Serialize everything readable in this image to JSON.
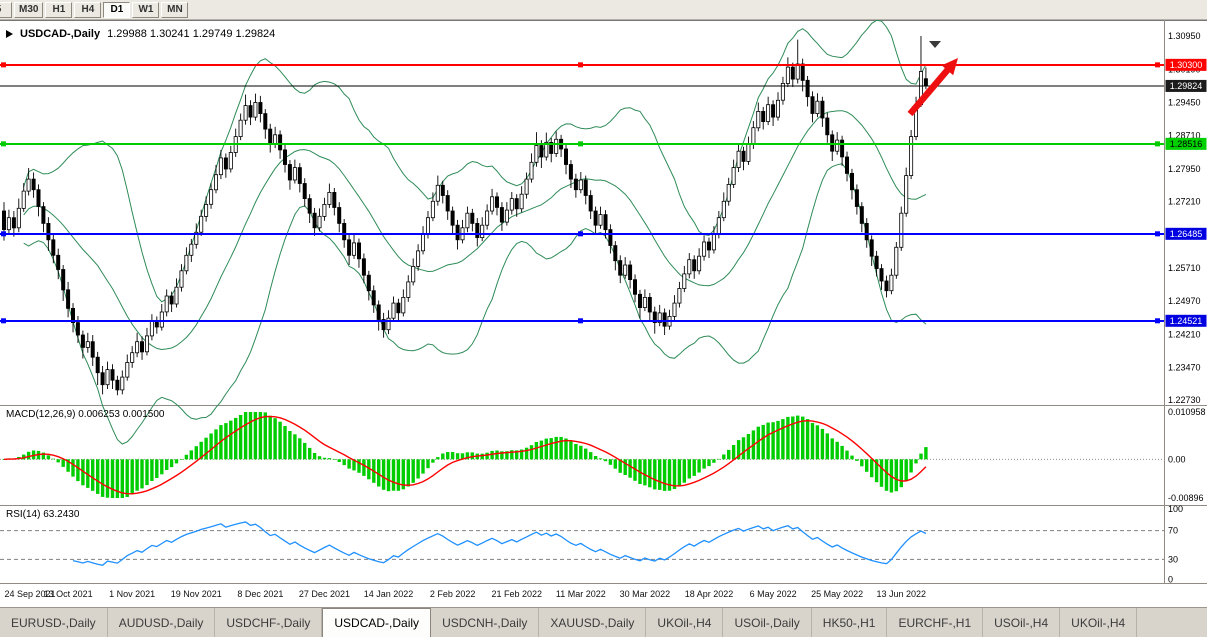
{
  "toolbar": {
    "buttons": [
      {
        "label": "5",
        "active": false
      },
      {
        "label": "M30",
        "active": false
      },
      {
        "label": "H1",
        "active": false
      },
      {
        "label": "H4",
        "active": false
      },
      {
        "label": "D1",
        "active": true
      },
      {
        "label": "W1",
        "active": false
      },
      {
        "label": "MN",
        "active": false
      }
    ]
  },
  "chart": {
    "title": "USDCAD-,Daily",
    "ohlc": "1.29988 1.30241 1.29749 1.29824"
  },
  "price_axis": {
    "labels": [
      {
        "text": "1.30950",
        "price": 1.3095
      },
      {
        "text": "1.30190",
        "price": 1.3019
      },
      {
        "text": "1.29450",
        "price": 1.2945
      },
      {
        "text": "1.28710",
        "price": 1.2871
      },
      {
        "text": "1.27950",
        "price": 1.2795
      },
      {
        "text": "1.27210",
        "price": 1.2721
      },
      {
        "text": "1.25710",
        "price": 1.2571
      },
      {
        "text": "1.24970",
        "price": 1.2497
      },
      {
        "text": "1.24210",
        "price": 1.2421
      },
      {
        "text": "1.23470",
        "price": 1.2347
      },
      {
        "text": "1.22730",
        "price": 1.2273
      }
    ],
    "tags": [
      {
        "text": "1.30300",
        "price": 1.303,
        "bg": "#ff0000",
        "fg": "#ffffff"
      },
      {
        "text": "1.29824",
        "price": 1.29824,
        "bg": "#1b1b1b",
        "fg": "#ffffff"
      },
      {
        "text": "1.28516",
        "price": 1.28516,
        "bg": "#00d000",
        "fg": "#000000"
      },
      {
        "text": "1.26485",
        "price": 1.26485,
        "bg": "#0000e0",
        "fg": "#ffffff"
      },
      {
        "text": "1.24521",
        "price": 1.24521,
        "bg": "#0000e0",
        "fg": "#ffffff"
      }
    ]
  },
  "hlines": [
    {
      "price": 1.303,
      "color": "#ff0000",
      "width": 2,
      "handles": true
    },
    {
      "price": 1.29824,
      "color": "#000000",
      "width": 1,
      "handles": false
    },
    {
      "price": 1.28516,
      "color": "#00cc00",
      "width": 2,
      "handles": true
    },
    {
      "price": 1.26485,
      "color": "#0000ff",
      "width": 2,
      "handles": true
    },
    {
      "price": 1.24521,
      "color": "#0000ff",
      "width": 2,
      "handles": true
    }
  ],
  "macd": {
    "label": "MACD(12,26,9)",
    "values": "0.006253 0.001500",
    "axis_labels": [
      "0.010958",
      "0.00",
      "-0.00896"
    ],
    "range": {
      "max": 0.010958,
      "min": -0.00896
    },
    "fast": 12,
    "slow": 26,
    "signal_period": 9,
    "hist_color": "#00cd00",
    "signal_color": "#ff0000"
  },
  "rsi": {
    "label": "RSI(14)",
    "value": "63.2430",
    "axis_labels": [
      "100",
      "70",
      "30",
      "0"
    ],
    "levels": [
      70,
      30
    ],
    "period": 14,
    "color": "#1e90ff"
  },
  "date_axis": {
    "labels": [
      {
        "text": "24 Sep 2021",
        "index": 0
      },
      {
        "text": "13 Oct 2021",
        "index": 13
      },
      {
        "text": "1 Nov 2021",
        "index": 26
      },
      {
        "text": "19 Nov 2021",
        "index": 39
      },
      {
        "text": "8 Dec 2021",
        "index": 52
      },
      {
        "text": "27 Dec 2021",
        "index": 65
      },
      {
        "text": "14 Jan 2022",
        "index": 78
      },
      {
        "text": "2 Feb 2022",
        "index": 91
      },
      {
        "text": "21 Feb 2022",
        "index": 104
      },
      {
        "text": "11 Mar 2022",
        "index": 117
      },
      {
        "text": "30 Mar 2022",
        "index": 130
      },
      {
        "text": "18 Apr 2022",
        "index": 143
      },
      {
        "text": "6 May 2022",
        "index": 156
      },
      {
        "text": "25 May 2022",
        "index": 169
      },
      {
        "text": "13 Jun 2022",
        "index": 182
      }
    ]
  },
  "annotations": {
    "trend_arrow_color": "#ee1010",
    "shift_marker_color": "#3a3a3a"
  },
  "tabs": [
    {
      "label": "EURUSD-,Daily",
      "active": false
    },
    {
      "label": "AUDUSD-,Daily",
      "active": false
    },
    {
      "label": "USDCHF-,Daily",
      "active": false
    },
    {
      "label": "USDCAD-,Daily",
      "active": true
    },
    {
      "label": "USDCNH-,Daily",
      "active": false
    },
    {
      "label": "XAUUSD-,Daily",
      "active": false
    },
    {
      "label": "UKOil-,H4",
      "active": false
    },
    {
      "label": "USOil-,Daily",
      "active": false
    },
    {
      "label": "HK50-,H1",
      "active": false
    },
    {
      "label": "EURCHF-,H1",
      "active": false
    },
    {
      "label": "USOil-,H4",
      "active": false
    },
    {
      "label": "UKOil-,H4",
      "active": false
    }
  ],
  "chart_data": {
    "type": "candlestick",
    "symbol": "USDCAD-",
    "timeframe": "Daily",
    "price_range": {
      "top": 1.3129,
      "bottom": 1.2262
    },
    "overlays": {
      "bollinger": {
        "period": 20,
        "deviation": 2,
        "color": "#2e8b57"
      }
    },
    "first_open": 1.27,
    "candles": [
      [
        1.2658,
        20,
        25
      ],
      [
        1.2685,
        18,
        12
      ],
      [
        1.2662,
        15,
        20
      ],
      [
        1.2706,
        22,
        10
      ],
      [
        1.2745,
        18,
        8
      ],
      [
        1.2772,
        25,
        10
      ],
      [
        1.2748,
        15,
        18
      ],
      [
        1.271,
        12,
        22
      ],
      [
        1.2672,
        10,
        20
      ],
      [
        1.2635,
        14,
        25
      ],
      [
        1.26,
        12,
        18
      ],
      [
        1.2568,
        15,
        22
      ],
      [
        1.2522,
        10,
        25
      ],
      [
        1.248,
        18,
        20
      ],
      [
        1.2448,
        12,
        22
      ],
      [
        1.242,
        15,
        18
      ],
      [
        1.2392,
        10,
        25
      ],
      [
        1.2405,
        20,
        12
      ],
      [
        1.237,
        15,
        20
      ],
      [
        1.2335,
        12,
        28
      ],
      [
        1.2308,
        15,
        22
      ],
      [
        1.2342,
        18,
        10
      ],
      [
        1.2318,
        12,
        20
      ],
      [
        1.2296,
        10,
        12
      ],
      [
        1.2325,
        15,
        10
      ],
      [
        1.2358,
        18,
        8
      ],
      [
        1.238,
        15,
        12
      ],
      [
        1.2405,
        20,
        10
      ],
      [
        1.2382,
        12,
        18
      ],
      [
        1.2418,
        18,
        8
      ],
      [
        1.2452,
        15,
        10
      ],
      [
        1.2438,
        10,
        15
      ],
      [
        1.2472,
        18,
        8
      ],
      [
        1.2508,
        15,
        10
      ],
      [
        1.249,
        10,
        18
      ],
      [
        1.2528,
        20,
        8
      ],
      [
        1.2565,
        15,
        10
      ],
      [
        1.26,
        18,
        8
      ],
      [
        1.2625,
        12,
        15
      ],
      [
        1.2652,
        20,
        10
      ],
      [
        1.2688,
        15,
        8
      ],
      [
        1.2715,
        18,
        12
      ],
      [
        1.2748,
        15,
        10
      ],
      [
        1.2782,
        22,
        8
      ],
      [
        1.282,
        18,
        10
      ],
      [
        1.2795,
        10,
        20
      ],
      [
        1.2832,
        15,
        8
      ],
      [
        1.2868,
        18,
        10
      ],
      [
        1.2905,
        15,
        8
      ],
      [
        1.2938,
        25,
        10
      ],
      [
        1.2912,
        12,
        18
      ],
      [
        1.2945,
        20,
        8
      ],
      [
        1.292,
        15,
        20
      ],
      [
        1.2885,
        10,
        22
      ],
      [
        1.285,
        12,
        18
      ],
      [
        1.2872,
        18,
        8
      ],
      [
        1.2838,
        10,
        20
      ],
      [
        1.2805,
        12,
        18
      ],
      [
        1.277,
        10,
        22
      ],
      [
        1.2798,
        18,
        8
      ],
      [
        1.2762,
        10,
        20
      ],
      [
        1.2728,
        12,
        18
      ],
      [
        1.2695,
        10,
        22
      ],
      [
        1.2662,
        12,
        18
      ],
      [
        1.2688,
        18,
        8
      ],
      [
        1.2715,
        15,
        10
      ],
      [
        1.2742,
        20,
        8
      ],
      [
        1.2708,
        10,
        18
      ],
      [
        1.2672,
        12,
        20
      ],
      [
        1.2635,
        10,
        18
      ],
      [
        1.26,
        12,
        22
      ],
      [
        1.2628,
        18,
        8
      ],
      [
        1.2592,
        10,
        20
      ],
      [
        1.2555,
        12,
        18
      ],
      [
        1.252,
        10,
        22
      ],
      [
        1.2488,
        12,
        18
      ],
      [
        1.2455,
        10,
        25
      ],
      [
        1.2432,
        15,
        18
      ],
      [
        1.2458,
        18,
        10
      ],
      [
        1.2492,
        15,
        8
      ],
      [
        1.247,
        10,
        18
      ],
      [
        1.2505,
        18,
        8
      ],
      [
        1.254,
        15,
        10
      ],
      [
        1.2575,
        18,
        8
      ],
      [
        1.261,
        15,
        10
      ],
      [
        1.2648,
        18,
        8
      ],
      [
        1.2685,
        15,
        10
      ],
      [
        1.2722,
        20,
        8
      ],
      [
        1.2758,
        22,
        10
      ],
      [
        1.2735,
        10,
        18
      ],
      [
        1.27,
        12,
        20
      ],
      [
        1.2668,
        10,
        18
      ],
      [
        1.2635,
        12,
        22
      ],
      [
        1.2662,
        18,
        8
      ],
      [
        1.2695,
        15,
        10
      ],
      [
        1.2672,
        10,
        18
      ],
      [
        1.264,
        12,
        20
      ],
      [
        1.2668,
        18,
        8
      ],
      [
        1.27,
        15,
        10
      ],
      [
        1.2732,
        18,
        8
      ],
      [
        1.2708,
        10,
        18
      ],
      [
        1.2675,
        12,
        20
      ],
      [
        1.2702,
        18,
        8
      ],
      [
        1.2728,
        15,
        10
      ],
      [
        1.2705,
        10,
        18
      ],
      [
        1.2738,
        18,
        8
      ],
      [
        1.2772,
        15,
        10
      ],
      [
        1.281,
        20,
        8
      ],
      [
        1.2848,
        30,
        10
      ],
      [
        1.2822,
        12,
        25
      ],
      [
        1.2855,
        22,
        8
      ],
      [
        1.283,
        10,
        20
      ],
      [
        1.2862,
        18,
        8
      ],
      [
        1.284,
        10,
        18
      ],
      [
        1.2805,
        12,
        22
      ],
      [
        1.2772,
        10,
        20
      ],
      [
        1.2748,
        12,
        18
      ],
      [
        1.277,
        18,
        8
      ],
      [
        1.2735,
        10,
        20
      ],
      [
        1.27,
        12,
        18
      ],
      [
        1.2668,
        10,
        22
      ],
      [
        1.2692,
        18,
        8
      ],
      [
        1.2658,
        10,
        20
      ],
      [
        1.2622,
        12,
        18
      ],
      [
        1.2588,
        10,
        22
      ],
      [
        1.2555,
        12,
        18
      ],
      [
        1.2578,
        18,
        8
      ],
      [
        1.2545,
        10,
        20
      ],
      [
        1.2512,
        12,
        18
      ],
      [
        1.2482,
        10,
        25
      ],
      [
        1.2505,
        18,
        8
      ],
      [
        1.2472,
        10,
        22
      ],
      [
        1.2448,
        12,
        25
      ],
      [
        1.247,
        18,
        8
      ],
      [
        1.244,
        10,
        20
      ],
      [
        1.2462,
        15,
        8
      ],
      [
        1.2492,
        18,
        8
      ],
      [
        1.2525,
        15,
        10
      ],
      [
        1.2558,
        18,
        8
      ],
      [
        1.259,
        15,
        10
      ],
      [
        1.2565,
        10,
        18
      ],
      [
        1.2598,
        18,
        8
      ],
      [
        1.263,
        15,
        10
      ],
      [
        1.2612,
        10,
        18
      ],
      [
        1.2648,
        18,
        8
      ],
      [
        1.2685,
        15,
        10
      ],
      [
        1.2722,
        20,
        8
      ],
      [
        1.276,
        15,
        10
      ],
      [
        1.2798,
        18,
        8
      ],
      [
        1.2835,
        15,
        10
      ],
      [
        1.2812,
        10,
        20
      ],
      [
        1.285,
        18,
        8
      ],
      [
        1.2888,
        15,
        10
      ],
      [
        1.2925,
        20,
        8
      ],
      [
        1.2902,
        10,
        18
      ],
      [
        1.294,
        18,
        8
      ],
      [
        1.2912,
        10,
        20
      ],
      [
        1.295,
        18,
        8
      ],
      [
        1.2988,
        15,
        10
      ],
      [
        1.3025,
        22,
        8
      ],
      [
        1.2998,
        10,
        18
      ],
      [
        1.3032,
        55,
        10
      ],
      [
        1.2995,
        12,
        25
      ],
      [
        1.2958,
        10,
        22
      ],
      [
        1.292,
        12,
        20
      ],
      [
        1.2948,
        18,
        8
      ],
      [
        1.291,
        10,
        20
      ],
      [
        1.2872,
        12,
        18
      ],
      [
        1.2835,
        10,
        22
      ],
      [
        1.286,
        18,
        8
      ],
      [
        1.2822,
        10,
        20
      ],
      [
        1.2785,
        12,
        18
      ],
      [
        1.2748,
        10,
        22
      ],
      [
        1.271,
        12,
        18
      ],
      [
        1.2672,
        10,
        20
      ],
      [
        1.2635,
        12,
        18
      ],
      [
        1.2598,
        10,
        22
      ],
      [
        1.257,
        12,
        18
      ],
      [
        1.2542,
        10,
        20
      ],
      [
        1.252,
        12,
        15
      ],
      [
        1.2555,
        15,
        8
      ],
      [
        1.2618,
        12,
        8
      ],
      [
        1.2695,
        15,
        8
      ],
      [
        1.278,
        18,
        8
      ],
      [
        1.2868,
        15,
        8
      ],
      [
        1.294,
        18,
        8
      ],
      [
        1.3015,
        80,
        5
      ]
    ],
    "last_candle": {
      "open": 1.29988,
      "high": 1.30241,
      "low": 1.29749,
      "close": 1.29824
    }
  }
}
